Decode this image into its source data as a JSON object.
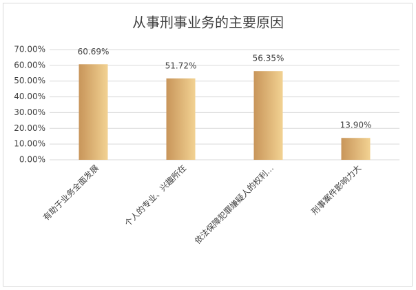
{
  "chart_data": {
    "type": "bar",
    "title": "从事刑事业务的主要原因",
    "categories": [
      "有助于业务全面发展",
      "个人的专业、兴趣所在",
      "依法保障犯罪嫌疑人的权利…",
      "刑事案件影响力大"
    ],
    "values": [
      60.69,
      51.72,
      56.35,
      13.9
    ],
    "value_labels": [
      "60.69%",
      "51.72%",
      "56.35%",
      "13.90%"
    ],
    "colors": [
      "#c8955a",
      "#f2d292"
    ],
    "ylim": [
      0,
      70
    ],
    "yticks": [
      {
        "value": 0,
        "label": "0.00%"
      },
      {
        "value": 10,
        "label": "10.00%"
      },
      {
        "value": 20,
        "label": "20.00%"
      },
      {
        "value": 30,
        "label": "30.00%"
      },
      {
        "value": 40,
        "label": "40.00%"
      },
      {
        "value": 50,
        "label": "50.00%"
      },
      {
        "value": 60,
        "label": "60.00%"
      },
      {
        "value": 70,
        "label": "70.00%"
      }
    ],
    "grid": true
  }
}
